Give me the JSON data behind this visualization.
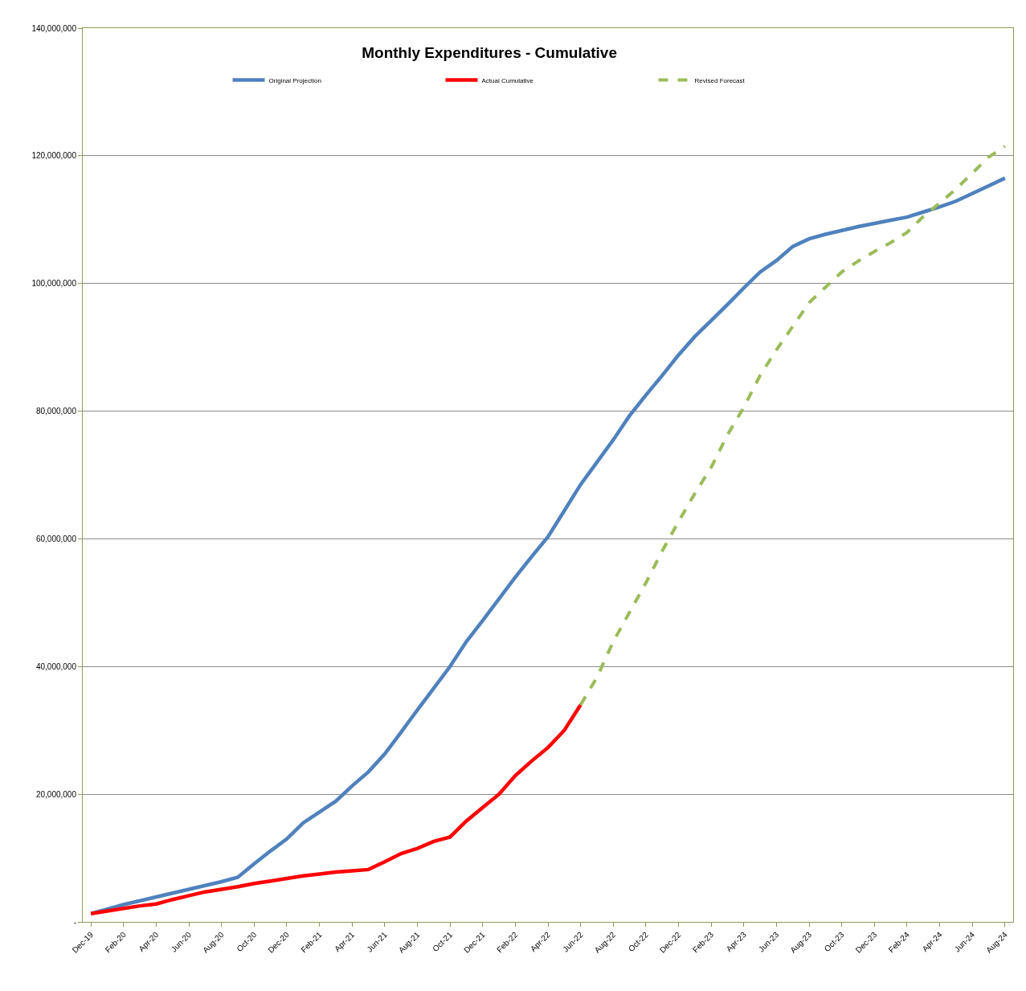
{
  "chart_data": {
    "type": "line",
    "title": "Monthly Expenditures - Cumulative",
    "categories": [
      "Dec-19",
      null,
      "Feb-20",
      null,
      "Apr-20",
      null,
      "Jun-20",
      null,
      "Aug-20",
      null,
      "Oct-20",
      null,
      "Dec-20",
      null,
      "Feb-21",
      null,
      "Apr-21",
      null,
      "Jun-21",
      null,
      "Aug-21",
      null,
      "Oct-21",
      null,
      "Dec-21",
      null,
      "Feb-22",
      null,
      "Apr-22",
      null,
      "Jun-22",
      null,
      "Aug-22",
      null,
      "Oct-22",
      null,
      "Dec-22",
      null,
      "Feb-23",
      null,
      "Apr-23",
      null,
      "Jun-23",
      null,
      "Aug-23",
      null,
      "Oct-23",
      null,
      "Dec-23",
      null,
      "Feb-24",
      null,
      "Apr-24",
      null,
      "Jun-24",
      null,
      "Aug-24"
    ],
    "series": [
      {
        "name": "Original Projection",
        "color": "#4f81bd",
        "line_style": "solid",
        "values": [
          1300000,
          2000000,
          2700000,
          3300000,
          3900000,
          4500000,
          5100000,
          5700000,
          6300000,
          7000000,
          9100000,
          11100000,
          13000000,
          15500000,
          17200000,
          18900000,
          21300000,
          23500000,
          26300000,
          29700000,
          33200000,
          36600000,
          40000000,
          43900000,
          47200000,
          50600000,
          54000000,
          57200000,
          60300000,
          64400000,
          68500000,
          72000000,
          75500000,
          79300000,
          82500000,
          85600000,
          88800000,
          91700000,
          94200000,
          96700000,
          99300000,
          101800000,
          103600000,
          105800000,
          107000000,
          107700000,
          108300000,
          108900000,
          109400000,
          109900000,
          110400000,
          111200000,
          112000000,
          112900000,
          114100000,
          115300000,
          116500000
        ]
      },
      {
        "name": "Actual Cumulative",
        "color": "#ff0000",
        "line_style": "solid",
        "values": [
          1300000,
          1700000,
          2100000,
          2500000,
          2800000,
          3500000,
          4100000,
          4700000,
          5100000,
          5500000,
          6000000,
          6400000,
          6800000,
          7200000,
          7500000,
          7800000,
          8000000,
          8200000,
          9400000,
          10700000,
          11500000,
          12600000,
          13300000,
          15800000,
          17900000,
          20000000,
          22900000,
          25200000,
          27300000,
          30000000,
          34000000,
          null,
          null,
          null,
          null,
          null,
          null,
          null,
          null,
          null,
          null,
          null,
          null,
          null,
          null,
          null,
          null,
          null,
          null,
          null,
          null,
          null,
          null,
          null,
          null,
          null,
          null
        ]
      },
      {
        "name": "Revised Forecast",
        "color": "#9bbb59",
        "line_style": "dashed",
        "values": [
          null,
          null,
          null,
          null,
          null,
          null,
          null,
          null,
          null,
          null,
          null,
          null,
          null,
          null,
          null,
          null,
          null,
          null,
          null,
          null,
          null,
          null,
          null,
          null,
          null,
          null,
          null,
          null,
          null,
          null,
          34000000,
          38300000,
          43900000,
          48500000,
          53100000,
          58100000,
          62700000,
          67100000,
          71200000,
          76300000,
          80600000,
          85600000,
          89600000,
          93300000,
          97000000,
          99400000,
          101800000,
          103500000,
          105000000,
          106400000,
          108000000,
          110500000,
          112600000,
          114800000,
          117300000,
          119800000,
          121500000
        ]
      }
    ],
    "ylim": [
      0,
      140000000
    ],
    "yticks": [
      {
        "value": 0,
        "label": "-"
      },
      {
        "value": 20000000,
        "label": "20,000,000"
      },
      {
        "value": 40000000,
        "label": "40,000,000"
      },
      {
        "value": 60000000,
        "label": "60,000,000"
      },
      {
        "value": 80000000,
        "label": "80,000,000"
      },
      {
        "value": 100000000,
        "label": "100,000,000"
      },
      {
        "value": 120000000,
        "label": "120,000,000"
      },
      {
        "value": 140000000,
        "label": "140,000,000"
      }
    ],
    "grid": "y",
    "legend": "top",
    "marker": "none"
  }
}
